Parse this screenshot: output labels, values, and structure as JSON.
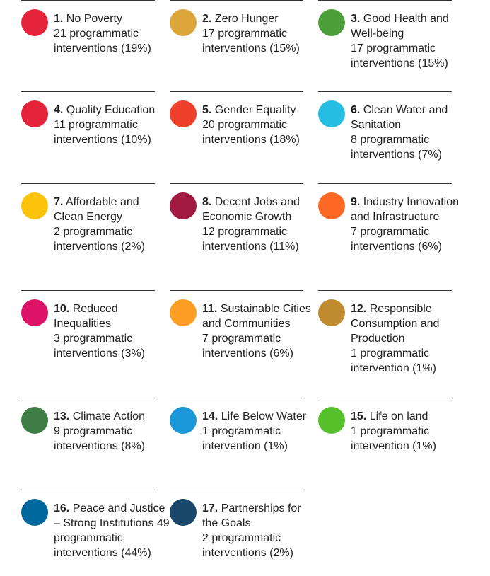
{
  "items": [
    {
      "number": "1.",
      "name": "No Poverty",
      "detail": "21 programmatic interventions (19%)",
      "color": "#e5243b"
    },
    {
      "number": "2.",
      "name": "Zero Hunger",
      "detail": "17 programmatic interventions (15%)",
      "color": "#dda63a"
    },
    {
      "number": "3.",
      "name": "Good Health and Well-being",
      "detail": "17 programmatic interventions (15%)",
      "color": "#4c9f38"
    },
    {
      "number": "4.",
      "name": "Quality Education",
      "detail": "11 programmatic interventions (10%)",
      "color": "#e5243b"
    },
    {
      "number": "5.",
      "name": "Gender Equality",
      "detail": "20 programmatic interventions (18%)",
      "color": "#ef402b"
    },
    {
      "number": "6.",
      "name": "Clean Water and Sanitation",
      "detail": "8 programmatic interventions (7%)",
      "color": "#26bde2"
    },
    {
      "number": "7.",
      "name": "Affordable and Clean Energy",
      "detail": "2 programmatic interventions (2%)",
      "color": "#fcc30b"
    },
    {
      "number": "8.",
      "name": "Decent Jobs and Economic Growth",
      "detail": "12 programmatic interventions (11%)",
      "color": "#a21942"
    },
    {
      "number": "9.",
      "name": "Industry Innovation and Infrastructure",
      "detail": "7 programmatic interventions (6%)",
      "color": "#fd6925"
    },
    {
      "number": "10.",
      "name": "Reduced Inequalities",
      "detail": "3 programmatic interventions (3%)",
      "color": "#dd1367"
    },
    {
      "number": "11.",
      "name": "Sustainable Cities and Communities",
      "detail": "7 programmatic interventions (6%)",
      "color": "#fd9d24"
    },
    {
      "number": "12.",
      "name": "Responsible Consumption and Production",
      "detail": "1 programmatic intervention (1%)",
      "color": "#bf8b2e"
    },
    {
      "number": "13.",
      "name": "Climate Action",
      "detail": "9 programmatic interventions (8%)",
      "color": "#3f7e44"
    },
    {
      "number": "14.",
      "name": "Life Below Water",
      "detail": "1 programmatic intervention (1%)",
      "color": "#1a97d9"
    },
    {
      "number": "15.",
      "name": "Life on land",
      "detail": "1 programmatic intervention (1%)",
      "color": "#56c02b"
    },
    {
      "number": "16.",
      "name": "Peace and Justice – Strong Institutions 49 programmatic interventions (44%)",
      "color": "#00689d"
    },
    {
      "number": "17.",
      "name": "Partnerships for the Goals",
      "detail": "2 programmatic interventions (2%)",
      "color": "#19486a"
    }
  ]
}
